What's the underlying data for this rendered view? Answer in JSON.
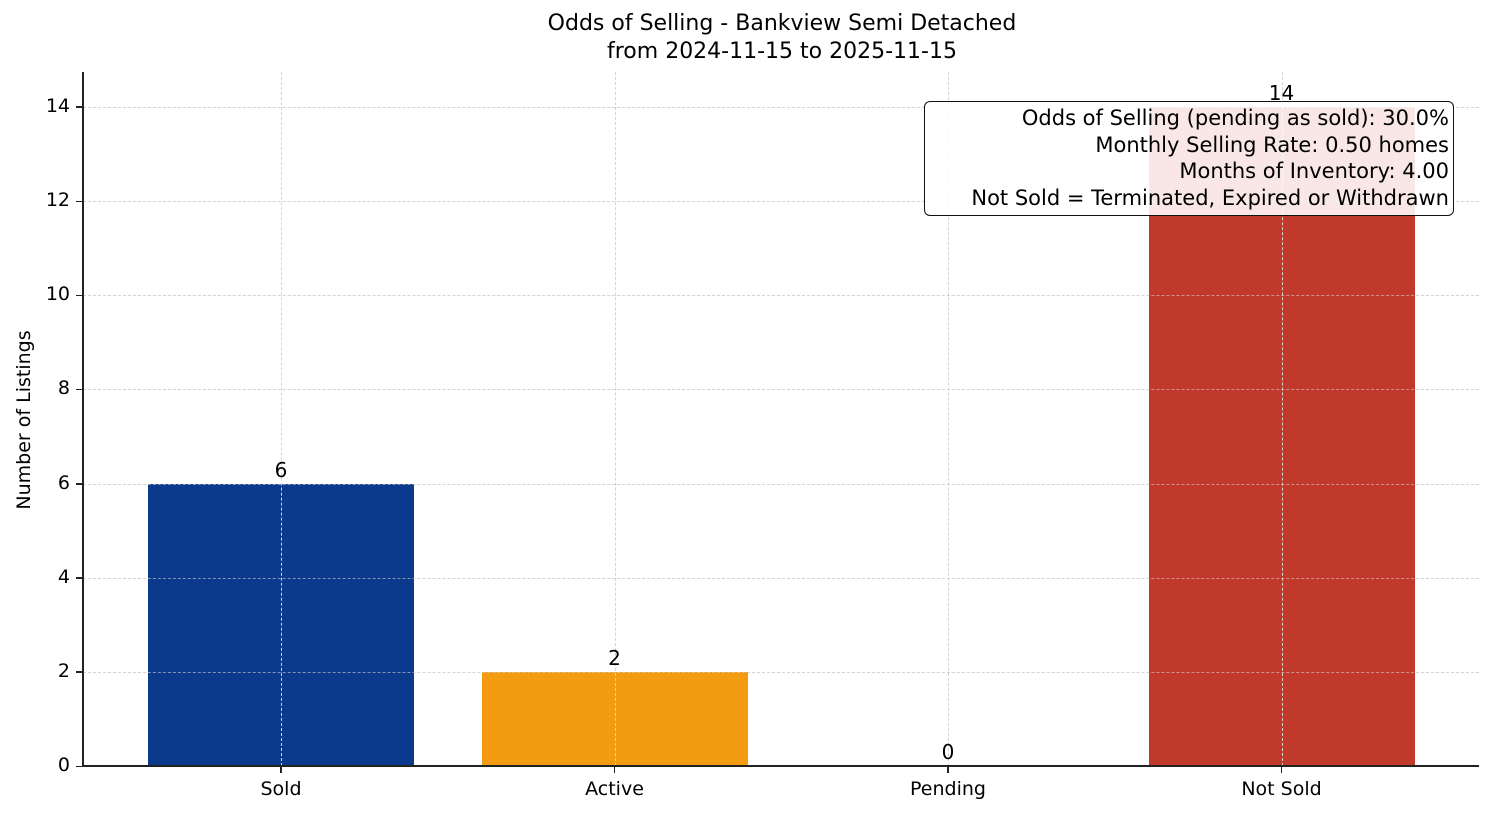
{
  "chart_data": {
    "type": "bar",
    "title": "Odds of Selling - Bankview Semi Detached",
    "subtitle": "from 2024-11-15 to 2025-11-15",
    "xlabel": "",
    "ylabel": "Number of Listings",
    "categories": [
      "Sold",
      "Active",
      "Pending",
      "Not Sold"
    ],
    "values": [
      6,
      2,
      0,
      14
    ],
    "colors": [
      "#0b3a8c",
      "#f39c12",
      "#2e7d32",
      "#c0392b"
    ],
    "ylim": [
      0,
      14.74
    ],
    "yticks": [
      0,
      2,
      4,
      6,
      8,
      10,
      12,
      14
    ],
    "grid": true,
    "legend": null,
    "annotations": [
      "Odds of Selling (pending as sold): 30.0%",
      "Monthly Selling Rate: 0.50 homes",
      "Months of Inventory: 4.00",
      "Not Sold = Terminated, Expired or Withdrawn"
    ]
  },
  "title": {
    "line1": "Odds of Selling - Bankview Semi Detached",
    "line2": "from 2024-11-15 to 2025-11-15"
  },
  "axes": {
    "ylabel": "Number of Listings",
    "yticks": [
      "0",
      "2",
      "4",
      "6",
      "8",
      "10",
      "12",
      "14"
    ],
    "xticks": [
      "Sold",
      "Active",
      "Pending",
      "Not Sold"
    ]
  },
  "bars": [
    {
      "label": "Sold",
      "value": "6",
      "color": "#0b3a8c"
    },
    {
      "label": "Active",
      "value": "2",
      "color": "#f39c12"
    },
    {
      "label": "Pending",
      "value": "0",
      "color": "#2e7d32"
    },
    {
      "label": "Not Sold",
      "value": "14",
      "color": "#c0392b"
    }
  ],
  "infobox": {
    "line1": "Odds of Selling (pending as sold): 30.0%",
    "line2": "Monthly Selling Rate: 0.50 homes",
    "line3": "Months of Inventory: 4.00",
    "line4": "Not Sold = Terminated, Expired or Withdrawn"
  }
}
